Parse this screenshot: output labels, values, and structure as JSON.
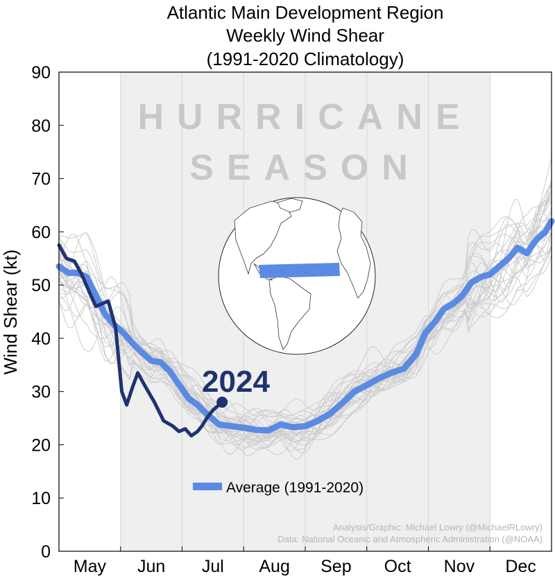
{
  "chart_data": {
    "type": "line",
    "title_lines": [
      "Atlantic Main Development Region",
      "Weekly Wind Shear",
      "(1991-2020 Climatology)"
    ],
    "xlabel": "",
    "ylabel": "Wind Shear (kt)",
    "ylim": [
      0,
      90
    ],
    "yticks": [
      0,
      10,
      20,
      30,
      40,
      50,
      60,
      70,
      80,
      90
    ],
    "xlim": [
      0,
      8
    ],
    "month_labels": [
      "May",
      "Jun",
      "Jul",
      "Aug",
      "Sep",
      "Oct",
      "Nov",
      "Dec"
    ],
    "shaded_season": {
      "from": 1,
      "to": 7,
      "label_lines": [
        "HURRICANE",
        "SEASON"
      ]
    },
    "grid": false,
    "legend": {
      "placement": "bottom-center",
      "label": "Average (1991-2020)"
    },
    "highlight_label": "2024",
    "credits": [
      "Analysis/Graphic: Michael Lowry (@MichaelRLowry)",
      "Data: National Oceanic and Atmospheric Administration (@NOAA)"
    ],
    "colors": {
      "average": "#5b8ae3",
      "year_2024": "#1f3370",
      "individual_years": "#cccccc",
      "season_shade": "#efefef",
      "watermark": "#c8c8c8",
      "credits": "#b5b5b5"
    },
    "series": [
      {
        "name": "Average (1991-2020)",
        "x": [
          0,
          0.15,
          0.3,
          0.45,
          0.6,
          0.75,
          0.9,
          1.05,
          1.2,
          1.35,
          1.5,
          1.65,
          1.8,
          1.95,
          2.1,
          2.25,
          2.4,
          2.6,
          2.8,
          3.0,
          3.2,
          3.4,
          3.6,
          3.8,
          4.0,
          4.2,
          4.4,
          4.6,
          4.8,
          5.0,
          5.2,
          5.4,
          5.6,
          5.8,
          5.95,
          6.1,
          6.25,
          6.4,
          6.55,
          6.7,
          6.85,
          7.0,
          7.15,
          7.3,
          7.45,
          7.6,
          7.75,
          7.9,
          8.0
        ],
        "values": [
          53.5,
          52.3,
          52.3,
          51.5,
          48.0,
          44.5,
          42.5,
          41.0,
          39.0,
          37.3,
          35.8,
          35.5,
          33.8,
          31.3,
          28.8,
          27.5,
          25.8,
          23.8,
          23.5,
          23.2,
          22.8,
          22.7,
          23.8,
          23.3,
          23.5,
          24.5,
          25.8,
          27.8,
          30.0,
          31.2,
          32.5,
          33.5,
          34.3,
          37.0,
          41.0,
          43.0,
          45.5,
          46.5,
          48.0,
          50.5,
          51.5,
          52.0,
          53.5,
          55.0,
          57.0,
          56.0,
          58.5,
          60.0,
          62.0
        ]
      },
      {
        "name": "2024",
        "x": [
          0,
          0.12,
          0.25,
          0.37,
          0.5,
          0.6,
          0.7,
          0.8,
          0.92,
          1.02,
          1.1,
          1.2,
          1.28,
          1.4,
          1.55,
          1.7,
          1.85,
          1.95,
          2.05,
          2.15,
          2.25,
          2.32,
          2.4,
          2.5,
          2.6,
          2.65
        ],
        "values": [
          57.5,
          55.0,
          54.5,
          52.0,
          48.5,
          46.0,
          46.5,
          47.0,
          42.0,
          30.0,
          27.5,
          31.0,
          33.5,
          31.0,
          28.0,
          24.5,
          23.5,
          22.5,
          23.0,
          21.7,
          22.5,
          23.5,
          25.0,
          26.5,
          27.5,
          28.0
        ]
      }
    ]
  }
}
